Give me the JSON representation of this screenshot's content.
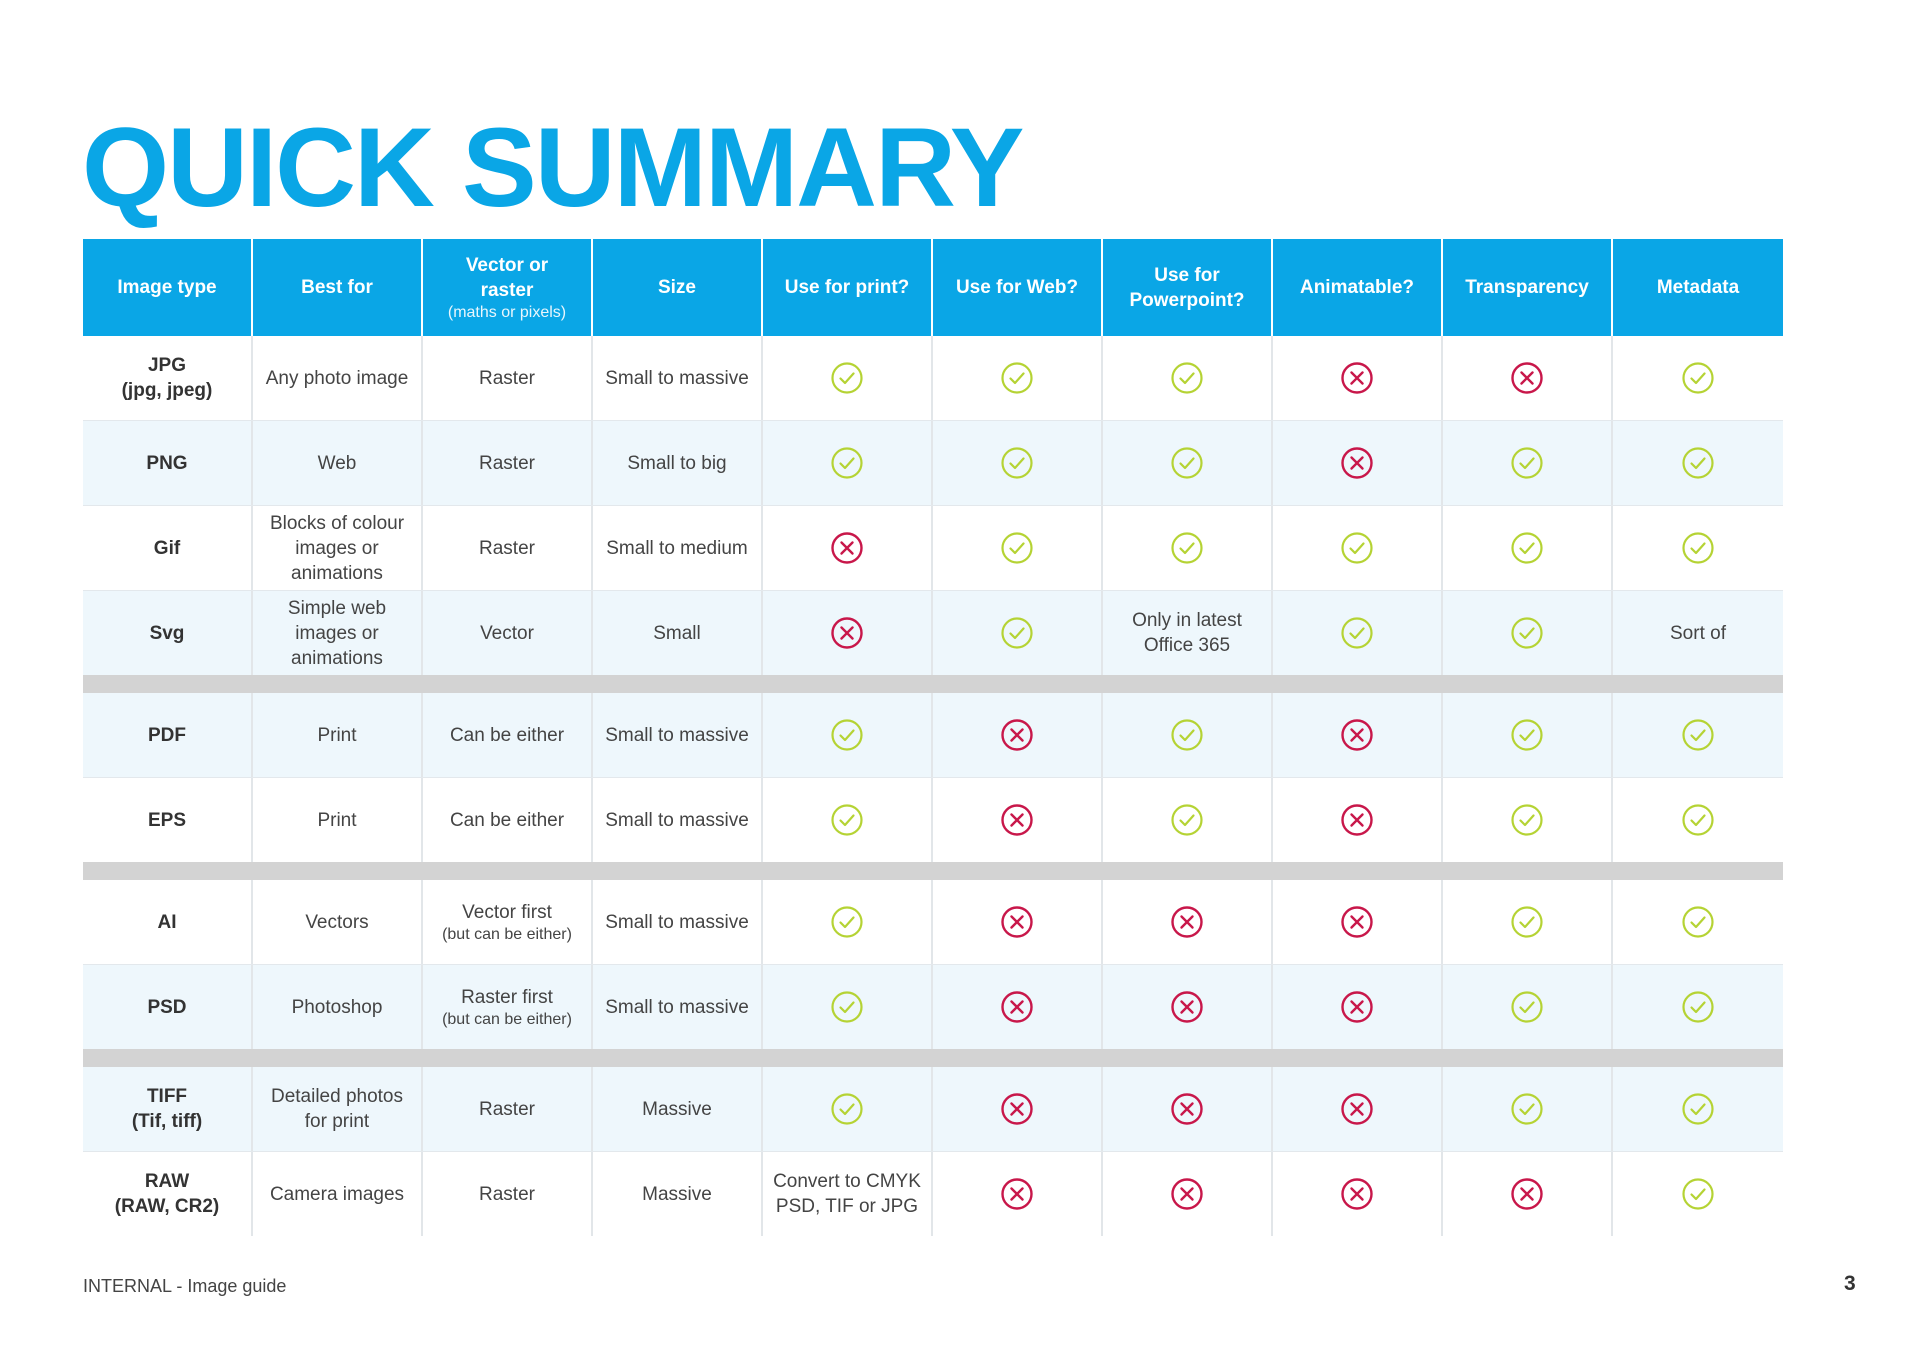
{
  "title": "QUICK SUMMARY",
  "header": {
    "image_type": "Image type",
    "best_for": "Best for",
    "vector_raster": "Vector or raster",
    "vector_raster_sub": "(maths or pixels)",
    "size": "Size",
    "print": "Use for print?",
    "web": "Use for Web?",
    "powerpoint": "Use for Powerpoint?",
    "animatable": "Animatable?",
    "transparency": "Transparency",
    "metadata": "Metadata"
  },
  "rows": [
    {
      "type": [
        "JPG",
        "(jpg, jpeg)"
      ],
      "best": "Any photo image",
      "vr": "Raster",
      "size": "Small to massive",
      "print": "yes",
      "web": "yes",
      "powerpoint": "yes",
      "animatable": "no",
      "transparency": "no",
      "metadata": "yes"
    },
    {
      "type": [
        "PNG"
      ],
      "best": "Web",
      "vr": "Raster",
      "size": "Small to big",
      "print": "yes",
      "web": "yes",
      "powerpoint": "yes",
      "animatable": "no",
      "transparency": "yes",
      "metadata": "yes"
    },
    {
      "type": [
        "Gif"
      ],
      "best": "Blocks of colour images or animations",
      "vr": "Raster",
      "size": "Small to medium",
      "print": "no",
      "web": "yes",
      "powerpoint": "yes",
      "animatable": "yes",
      "transparency": "yes",
      "metadata": "yes"
    },
    {
      "type": [
        "Svg"
      ],
      "best": "Simple web images or animations",
      "vr": "Vector",
      "size": "Small",
      "print": "no",
      "web": "yes",
      "powerpoint_text": "Only in latest Office 365",
      "animatable": "yes",
      "transparency": "yes",
      "metadata_text": "Sort of"
    },
    {
      "type": [
        "PDF"
      ],
      "best": "Print",
      "vr": "Can be either",
      "size": "Small to massive",
      "print": "yes",
      "web": "no",
      "powerpoint": "yes",
      "animatable": "no",
      "transparency": "yes",
      "metadata": "yes"
    },
    {
      "type": [
        "EPS"
      ],
      "best": "Print",
      "vr": "Can be either",
      "size": "Small to massive",
      "print": "yes",
      "web": "no",
      "powerpoint": "yes",
      "animatable": "no",
      "transparency": "yes",
      "metadata": "yes"
    },
    {
      "type": [
        "AI"
      ],
      "best": "Vectors",
      "vr": "Vector first",
      "vr_note": "(but can be either)",
      "size": "Small to massive",
      "print": "yes",
      "web": "no",
      "powerpoint": "no",
      "animatable": "no",
      "transparency": "yes",
      "metadata": "yes"
    },
    {
      "type": [
        "PSD"
      ],
      "best": "Photoshop",
      "vr": "Raster first",
      "vr_note": "(but can be either)",
      "size": "Small to massive",
      "print": "yes",
      "web": "no",
      "powerpoint": "no",
      "animatable": "no",
      "transparency": "yes",
      "metadata": "yes"
    },
    {
      "type": [
        "TIFF",
        "(Tif, tiff)"
      ],
      "best": "Detailed photos for print",
      "vr": "Raster",
      "size": "Massive",
      "print": "yes",
      "web": "no",
      "powerpoint": "no",
      "animatable": "no",
      "transparency": "yes",
      "metadata": "yes"
    },
    {
      "type": [
        "RAW",
        "(RAW, CR2)"
      ],
      "best": "Camera images",
      "vr": "Raster",
      "size": "Massive",
      "print_text": "Convert to CMYK PSD, TIF or JPG",
      "web": "no",
      "powerpoint": "no",
      "animatable": "no",
      "transparency": "no",
      "metadata": "yes"
    }
  ],
  "icons": {
    "yes": "check-circle-icon",
    "no": "cross-circle-icon"
  },
  "colors": {
    "accent": "#0aa6e6",
    "check": "#b5d334",
    "cross": "#c8174a",
    "separator": "#d3d3d3",
    "row_alt": "#eef7fc"
  },
  "footer": {
    "left": "INTERNAL - Image guide",
    "page_number": "3"
  }
}
